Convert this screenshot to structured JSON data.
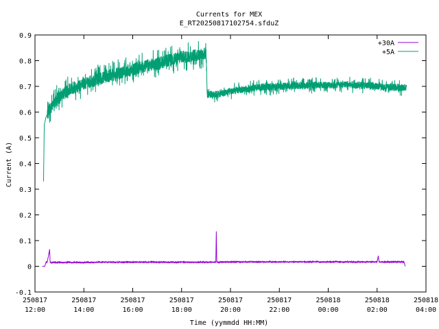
{
  "chart_data": {
    "type": "line",
    "title": "Currents for MEX",
    "subtitle": "E_RT20250817102754.sfduZ",
    "xlabel": "Time (yymmdd HH:MM)",
    "ylabel": "Current (A)",
    "x_range_hours": [
      12,
      28
    ],
    "xticks": [
      {
        "date": "250817",
        "time": "12:00",
        "hour": 12
      },
      {
        "date": "250817",
        "time": "14:00",
        "hour": 14
      },
      {
        "date": "250817",
        "time": "16:00",
        "hour": 16
      },
      {
        "date": "250817",
        "time": "18:00",
        "hour": 18
      },
      {
        "date": "250817",
        "time": "20:00",
        "hour": 20
      },
      {
        "date": "250817",
        "time": "22:00",
        "hour": 22
      },
      {
        "date": "250818",
        "time": "00:00",
        "hour": 24
      },
      {
        "date": "250818",
        "time": "02:00",
        "hour": 26
      },
      {
        "date": "250818",
        "time": "04:00",
        "hour": 28
      }
    ],
    "ylim": [
      -0.1,
      0.9
    ],
    "yticks": [
      -0.1,
      0,
      0.1,
      0.2,
      0.3,
      0.4,
      0.5,
      0.6,
      0.7,
      0.8,
      0.9
    ],
    "grid": false,
    "legend_position": "top-right",
    "series": [
      {
        "name": "+30A",
        "color": "#9400d3",
        "points": [
          [
            12.3,
            0.0
          ],
          [
            12.4,
            0.0
          ],
          [
            12.45,
            0.015
          ],
          [
            12.5,
            0.015
          ],
          [
            12.6,
            0.065
          ],
          [
            12.62,
            0.015
          ],
          [
            13,
            0.015
          ],
          [
            14,
            0.015
          ],
          [
            15,
            0.016
          ],
          [
            16,
            0.016
          ],
          [
            17,
            0.016
          ],
          [
            18,
            0.016
          ],
          [
            19.4,
            0.016
          ],
          [
            19.42,
            0.135
          ],
          [
            19.44,
            0.016
          ],
          [
            20,
            0.017
          ],
          [
            22,
            0.017
          ],
          [
            24,
            0.017
          ],
          [
            26,
            0.017
          ],
          [
            26.05,
            0.04
          ],
          [
            26.08,
            0.017
          ],
          [
            27.0,
            0.017
          ],
          [
            27.1,
            0.017
          ],
          [
            27.15,
            0.0
          ]
        ]
      },
      {
        "name": "+5A",
        "color": "#009e73",
        "points": [
          [
            12.35,
            0.33
          ],
          [
            12.38,
            0.55
          ],
          [
            12.45,
            0.58
          ],
          [
            12.6,
            0.61
          ],
          [
            12.8,
            0.64
          ],
          [
            13.0,
            0.66
          ],
          [
            13.3,
            0.68
          ],
          [
            13.6,
            0.695
          ],
          [
            14.0,
            0.71
          ],
          [
            14.5,
            0.725
          ],
          [
            15.0,
            0.74
          ],
          [
            15.5,
            0.752
          ],
          [
            16.0,
            0.765
          ],
          [
            16.5,
            0.778
          ],
          [
            17.0,
            0.79
          ],
          [
            17.5,
            0.802
          ],
          [
            18.0,
            0.812
          ],
          [
            18.5,
            0.82
          ],
          [
            18.9,
            0.825
          ],
          [
            19.0,
            0.83
          ],
          [
            19.05,
            0.67
          ],
          [
            19.3,
            0.668
          ],
          [
            19.6,
            0.672
          ],
          [
            20.0,
            0.68
          ],
          [
            20.5,
            0.688
          ],
          [
            21.0,
            0.693
          ],
          [
            21.5,
            0.697
          ],
          [
            22.0,
            0.7
          ],
          [
            22.5,
            0.702
          ],
          [
            23.0,
            0.703
          ],
          [
            23.5,
            0.705
          ],
          [
            24.0,
            0.705
          ],
          [
            24.5,
            0.706
          ],
          [
            25.0,
            0.706
          ],
          [
            25.5,
            0.704
          ],
          [
            26.0,
            0.7
          ],
          [
            26.5,
            0.696
          ],
          [
            27.0,
            0.695
          ],
          [
            27.2,
            0.695
          ]
        ]
      }
    ]
  }
}
